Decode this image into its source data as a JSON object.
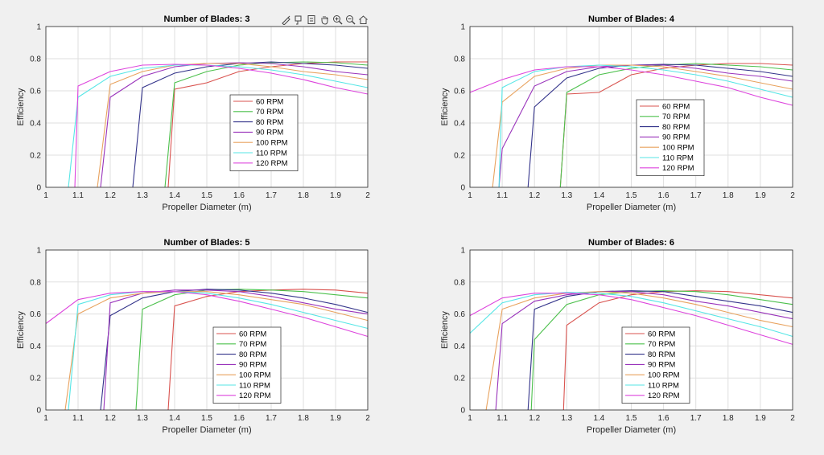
{
  "toolbar": {
    "items": [
      {
        "name": "brush-icon"
      },
      {
        "name": "data-tips-icon"
      },
      {
        "name": "restore-view-icon"
      },
      {
        "name": "pan-icon"
      },
      {
        "name": "zoom-in-icon"
      },
      {
        "name": "zoom-out-icon"
      },
      {
        "name": "home-icon"
      }
    ]
  },
  "colors": {
    "60 RPM": "#d9534f",
    "70 RPM": "#4cc04c",
    "80 RPM": "#33338a",
    "90 RPM": "#9933bb",
    "100 RPM": "#e8a25e",
    "110 RPM": "#55e6e6",
    "120 RPM": "#dd44dd"
  },
  "chart_data": [
    {
      "type": "line",
      "title": "Number of Blades: 3",
      "xlabel": "Propeller Diameter (m)",
      "ylabel": "Efficiency",
      "xlim": [
        1,
        2
      ],
      "ylim": [
        0,
        1
      ],
      "xticks": [
        "1",
        "1.1",
        "1.2",
        "1.3",
        "1.4",
        "1.5",
        "1.6",
        "1.7",
        "1.8",
        "1.9",
        "2"
      ],
      "yticks": [
        "0",
        "0.2",
        "0.4",
        "0.6",
        "0.8",
        "1"
      ],
      "grid": true,
      "legend": "center-right",
      "series": [
        {
          "name": "60 RPM",
          "x": [
            1.38,
            1.4,
            1.5,
            1.6,
            1.7,
            1.8,
            1.9,
            2.0
          ],
          "y": [
            0,
            0.61,
            0.65,
            0.72,
            0.75,
            0.77,
            0.78,
            0.78
          ]
        },
        {
          "name": "70 RPM",
          "x": [
            1.37,
            1.4,
            1.5,
            1.6,
            1.7,
            1.8,
            1.9,
            2.0
          ],
          "y": [
            0,
            0.65,
            0.72,
            0.76,
            0.775,
            0.78,
            0.775,
            0.76
          ]
        },
        {
          "name": "80 RPM",
          "x": [
            1.27,
            1.3,
            1.4,
            1.5,
            1.6,
            1.7,
            1.8,
            1.9,
            2.0
          ],
          "y": [
            0,
            0.62,
            0.71,
            0.75,
            0.77,
            0.78,
            0.77,
            0.76,
            0.74
          ]
        },
        {
          "name": "90 RPM",
          "x": [
            1.17,
            1.2,
            1.3,
            1.4,
            1.5,
            1.6,
            1.7,
            1.8,
            1.9,
            2.0
          ],
          "y": [
            0,
            0.56,
            0.69,
            0.75,
            0.77,
            0.775,
            0.77,
            0.75,
            0.72,
            0.7
          ]
        },
        {
          "name": "100 RPM",
          "x": [
            1.16,
            1.2,
            1.3,
            1.4,
            1.5,
            1.6,
            1.7,
            1.8,
            1.9,
            2.0
          ],
          "y": [
            0,
            0.64,
            0.72,
            0.76,
            0.77,
            0.77,
            0.75,
            0.72,
            0.7,
            0.67
          ]
        },
        {
          "name": "110 RPM",
          "x": [
            1.07,
            1.1,
            1.2,
            1.3,
            1.4,
            1.5,
            1.6,
            1.7,
            1.8,
            1.9,
            2.0
          ],
          "y": [
            0,
            0.56,
            0.69,
            0.74,
            0.76,
            0.76,
            0.75,
            0.73,
            0.7,
            0.66,
            0.62
          ]
        },
        {
          "name": "120 RPM",
          "x": [
            1.09,
            1.1,
            1.2,
            1.3,
            1.4,
            1.5,
            1.6,
            1.7,
            1.8,
            1.9,
            2.0
          ],
          "y": [
            0,
            0.63,
            0.72,
            0.76,
            0.765,
            0.76,
            0.74,
            0.71,
            0.67,
            0.62,
            0.58
          ]
        }
      ]
    },
    {
      "type": "line",
      "title": "Number of Blades: 4",
      "xlabel": "Propeller Diameter (m)",
      "ylabel": "Efficiency",
      "xlim": [
        1,
        2
      ],
      "ylim": [
        0,
        1
      ],
      "xticks": [
        "1",
        "1.1",
        "1.2",
        "1.3",
        "1.4",
        "1.5",
        "1.6",
        "1.7",
        "1.8",
        "1.9",
        "2"
      ],
      "yticks": [
        "0",
        "0.2",
        "0.4",
        "0.6",
        "0.8",
        "1"
      ],
      "grid": true,
      "legend": "center-right",
      "series": [
        {
          "name": "60 RPM",
          "x": [
            1.28,
            1.3,
            1.4,
            1.5,
            1.6,
            1.7,
            1.8,
            1.9,
            2.0
          ],
          "y": [
            0,
            0.58,
            0.59,
            0.7,
            0.74,
            0.76,
            0.77,
            0.77,
            0.76
          ]
        },
        {
          "name": "70 RPM",
          "x": [
            1.28,
            1.3,
            1.4,
            1.5,
            1.6,
            1.7,
            1.8,
            1.9,
            2.0
          ],
          "y": [
            0,
            0.59,
            0.7,
            0.74,
            0.76,
            0.77,
            0.76,
            0.75,
            0.73
          ]
        },
        {
          "name": "80 RPM",
          "x": [
            1.18,
            1.2,
            1.3,
            1.4,
            1.5,
            1.6,
            1.7,
            1.8,
            1.9,
            2.0
          ],
          "y": [
            0,
            0.5,
            0.68,
            0.74,
            0.76,
            0.765,
            0.76,
            0.74,
            0.72,
            0.69
          ]
        },
        {
          "name": "90 RPM",
          "x": [
            1.09,
            1.1,
            1.2,
            1.3,
            1.4,
            1.5,
            1.6,
            1.7,
            1.8,
            1.9,
            2.0
          ],
          "y": [
            0,
            0.24,
            0.63,
            0.72,
            0.75,
            0.76,
            0.76,
            0.74,
            0.71,
            0.69,
            0.66
          ]
        },
        {
          "name": "100 RPM",
          "x": [
            1.07,
            1.1,
            1.2,
            1.3,
            1.4,
            1.5,
            1.6,
            1.7,
            1.8,
            1.9,
            2.0
          ],
          "y": [
            0,
            0.53,
            0.69,
            0.74,
            0.76,
            0.76,
            0.75,
            0.72,
            0.69,
            0.65,
            0.61
          ]
        },
        {
          "name": "110 RPM",
          "x": [
            1.09,
            1.1,
            1.2,
            1.3,
            1.4,
            1.5,
            1.6,
            1.7,
            1.8,
            1.9,
            2.0
          ],
          "y": [
            0,
            0.62,
            0.72,
            0.75,
            0.76,
            0.75,
            0.73,
            0.7,
            0.66,
            0.61,
            0.56
          ]
        },
        {
          "name": "120 RPM",
          "x": [
            1.0,
            1.1,
            1.2,
            1.3,
            1.4,
            1.5,
            1.6,
            1.7,
            1.8,
            1.9,
            2.0
          ],
          "y": [
            0.59,
            0.67,
            0.73,
            0.75,
            0.75,
            0.73,
            0.7,
            0.66,
            0.62,
            0.56,
            0.51
          ]
        }
      ]
    },
    {
      "type": "line",
      "title": "Number of Blades: 5",
      "xlabel": "Propeller Diameter (m)",
      "ylabel": "Efficiency",
      "xlim": [
        1,
        2
      ],
      "ylim": [
        0,
        1
      ],
      "xticks": [
        "1",
        "1.1",
        "1.2",
        "1.3",
        "1.4",
        "1.5",
        "1.6",
        "1.7",
        "1.8",
        "1.9",
        "2"
      ],
      "yticks": [
        "0",
        "0.2",
        "0.4",
        "0.6",
        "0.8",
        "1"
      ],
      "grid": true,
      "legend": "center-right",
      "series": [
        {
          "name": "60 RPM",
          "x": [
            1.38,
            1.4,
            1.5,
            1.6,
            1.7,
            1.8,
            1.9,
            2.0
          ],
          "y": [
            0,
            0.65,
            0.71,
            0.74,
            0.75,
            0.755,
            0.75,
            0.73
          ]
        },
        {
          "name": "70 RPM",
          "x": [
            1.28,
            1.3,
            1.4,
            1.5,
            1.6,
            1.7,
            1.8,
            1.9,
            2.0
          ],
          "y": [
            0,
            0.63,
            0.72,
            0.75,
            0.755,
            0.75,
            0.74,
            0.72,
            0.7
          ]
        },
        {
          "name": "80 RPM",
          "x": [
            1.17,
            1.2,
            1.3,
            1.4,
            1.5,
            1.6,
            1.7,
            1.8,
            1.9,
            2.0
          ],
          "y": [
            0,
            0.59,
            0.7,
            0.74,
            0.755,
            0.75,
            0.73,
            0.7,
            0.66,
            0.61
          ]
        },
        {
          "name": "90 RPM",
          "x": [
            1.18,
            1.2,
            1.3,
            1.4,
            1.5,
            1.6,
            1.7,
            1.8,
            1.9,
            2.0
          ],
          "y": [
            0,
            0.67,
            0.73,
            0.75,
            0.75,
            0.74,
            0.71,
            0.67,
            0.63,
            0.6
          ]
        },
        {
          "name": "100 RPM",
          "x": [
            1.06,
            1.1,
            1.2,
            1.3,
            1.4,
            1.5,
            1.6,
            1.7,
            1.8,
            1.9,
            2.0
          ],
          "y": [
            0,
            0.6,
            0.7,
            0.73,
            0.74,
            0.74,
            0.72,
            0.69,
            0.66,
            0.61,
            0.56
          ]
        },
        {
          "name": "110 RPM",
          "x": [
            1.07,
            1.1,
            1.2,
            1.3,
            1.4,
            1.5,
            1.6,
            1.7,
            1.8,
            1.9,
            2.0
          ],
          "y": [
            0,
            0.66,
            0.72,
            0.74,
            0.74,
            0.73,
            0.7,
            0.66,
            0.61,
            0.56,
            0.51
          ]
        },
        {
          "name": "120 RPM",
          "x": [
            1.0,
            1.1,
            1.2,
            1.3,
            1.4,
            1.5,
            1.6,
            1.7,
            1.8,
            1.9,
            2.0
          ],
          "y": [
            0.54,
            0.69,
            0.73,
            0.74,
            0.74,
            0.72,
            0.68,
            0.63,
            0.58,
            0.52,
            0.46
          ]
        }
      ]
    },
    {
      "type": "line",
      "title": "Number of Blades: 6",
      "xlabel": "Propeller Diameter (m)",
      "ylabel": "Efficiency",
      "xlim": [
        1,
        2
      ],
      "ylim": [
        0,
        1
      ],
      "xticks": [
        "1",
        "1.1",
        "1.2",
        "1.3",
        "1.4",
        "1.5",
        "1.6",
        "1.7",
        "1.8",
        "1.9",
        "2"
      ],
      "yticks": [
        "0",
        "0.2",
        "0.4",
        "0.6",
        "0.8",
        "1"
      ],
      "grid": true,
      "legend": "center-right",
      "series": [
        {
          "name": "60 RPM",
          "x": [
            1.29,
            1.3,
            1.4,
            1.5,
            1.6,
            1.7,
            1.8,
            1.9,
            2.0
          ],
          "y": [
            0,
            0.53,
            0.67,
            0.72,
            0.74,
            0.745,
            0.74,
            0.72,
            0.7
          ]
        },
        {
          "name": "70 RPM",
          "x": [
            1.19,
            1.2,
            1.3,
            1.4,
            1.5,
            1.6,
            1.7,
            1.8,
            1.9,
            2.0
          ],
          "y": [
            0,
            0.44,
            0.66,
            0.72,
            0.74,
            0.745,
            0.74,
            0.72,
            0.69,
            0.66
          ]
        },
        {
          "name": "80 RPM",
          "x": [
            1.18,
            1.2,
            1.3,
            1.4,
            1.5,
            1.6,
            1.7,
            1.8,
            1.9,
            2.0
          ],
          "y": [
            0,
            0.63,
            0.71,
            0.74,
            0.745,
            0.74,
            0.71,
            0.68,
            0.65,
            0.61
          ]
        },
        {
          "name": "90 RPM",
          "x": [
            1.08,
            1.1,
            1.2,
            1.3,
            1.4,
            1.5,
            1.6,
            1.7,
            1.8,
            1.9,
            2.0
          ],
          "y": [
            0,
            0.54,
            0.68,
            0.72,
            0.74,
            0.74,
            0.72,
            0.68,
            0.65,
            0.61,
            0.57
          ]
        },
        {
          "name": "100 RPM",
          "x": [
            1.05,
            1.1,
            1.2,
            1.3,
            1.4,
            1.5,
            1.6,
            1.7,
            1.8,
            1.9,
            2.0
          ],
          "y": [
            0,
            0.63,
            0.7,
            0.73,
            0.74,
            0.73,
            0.7,
            0.66,
            0.61,
            0.56,
            0.52
          ]
        },
        {
          "name": "110 RPM",
          "x": [
            1.0,
            1.1,
            1.2,
            1.3,
            1.4,
            1.5,
            1.6,
            1.7,
            1.8,
            1.9,
            2.0
          ],
          "y": [
            0.48,
            0.67,
            0.72,
            0.735,
            0.73,
            0.71,
            0.67,
            0.62,
            0.57,
            0.52,
            0.46
          ]
        },
        {
          "name": "120 RPM",
          "x": [
            1.0,
            1.1,
            1.2,
            1.3,
            1.4,
            1.5,
            1.6,
            1.7,
            1.8,
            1.9,
            2.0
          ],
          "y": [
            0.59,
            0.7,
            0.73,
            0.73,
            0.72,
            0.69,
            0.64,
            0.59,
            0.53,
            0.47,
            0.41
          ]
        }
      ]
    }
  ]
}
